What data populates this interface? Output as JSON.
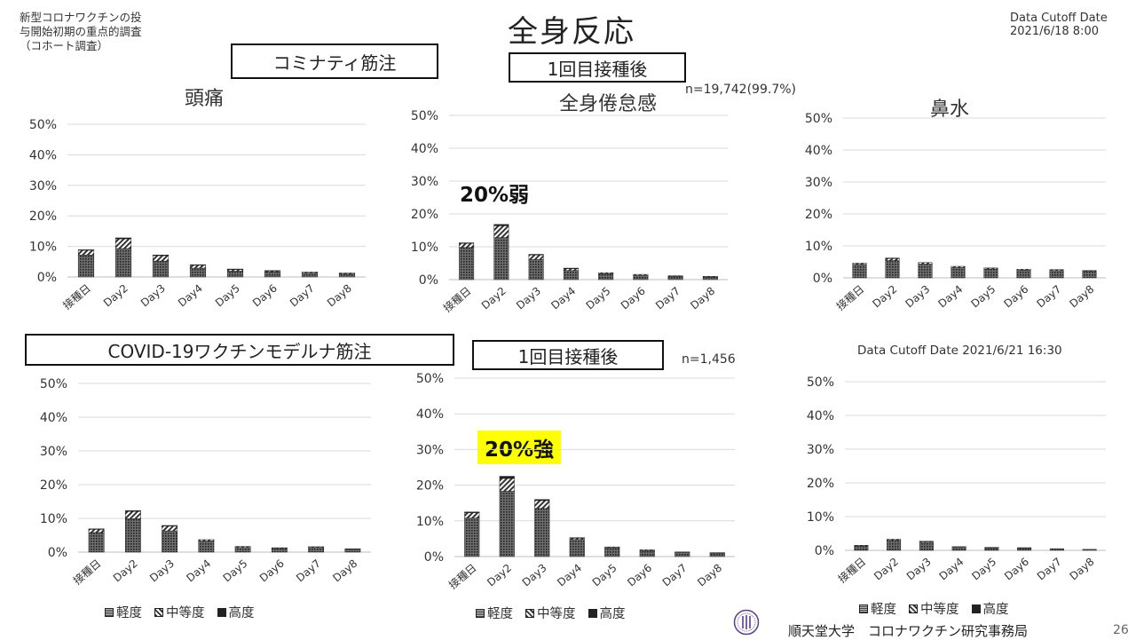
{
  "header": {
    "survey_title_lines": [
      "新型コロナワクチンの投",
      "与開始初期の重点的調査",
      "（コホート調査）"
    ],
    "main_title": "全身反応",
    "cutoff_lines": [
      "Data Cutoff Date",
      "2021/6/18 8:00"
    ]
  },
  "sections": [
    {
      "vaccine_label": "コミナティ筋注",
      "dose_label": "1回目接種後",
      "n_label": "n=19,742(99.7%)",
      "annotation": "20%弱"
    },
    {
      "vaccine_label": "COVID-19ワクチンモデルナ筋注",
      "dose_label": "1回目接種後",
      "n_label": "n=1,456",
      "cutoff_label": "Data Cutoff Date 2021/6/21 16:30",
      "annotation": "20%強"
    }
  ],
  "legend": {
    "items": [
      {
        "label": "軽度",
        "pattern": "dots"
      },
      {
        "label": "中等度",
        "pattern": "hatch"
      },
      {
        "label": "高度",
        "pattern": "solid"
      }
    ]
  },
  "footer": {
    "institution": "順天堂大学　コロナワクチン研究事務局",
    "page_number": "26"
  },
  "colors": {
    "bar_fill": "#3c3c3c",
    "grid": "#d9d9d9",
    "highlight": "#ffff00"
  },
  "chart_data": [
    {
      "type": "bar",
      "stacked": true,
      "title": "頭痛",
      "categories": [
        "接種日",
        "Day2",
        "Day3",
        "Day4",
        "Day5",
        "Day6",
        "Day7",
        "Day8"
      ],
      "yticks": [
        "0%",
        "10%",
        "20%",
        "30%",
        "40%",
        "50%"
      ],
      "ylim": [
        0,
        50
      ],
      "grid": true,
      "series": [
        {
          "name": "軽度",
          "values": [
            7.2,
            9.3,
            5.2,
            2.9,
            1.9,
            1.6,
            1.3,
            1.0
          ]
        },
        {
          "name": "中等度",
          "values": [
            1.6,
            3.2,
            1.8,
            1.0,
            0.6,
            0.4,
            0.3,
            0.3
          ]
        },
        {
          "name": "高度",
          "values": [
            0.1,
            0.3,
            0.2,
            0.1,
            0.1,
            0.1,
            0.0,
            0.0
          ]
        }
      ]
    },
    {
      "type": "bar",
      "stacked": true,
      "title": "全身倦怠感",
      "categories": [
        "接種日",
        "Day2",
        "Day3",
        "Day4",
        "Day5",
        "Day6",
        "Day7",
        "Day8"
      ],
      "yticks": [
        "0%",
        "10%",
        "20%",
        "30%",
        "40%",
        "50%"
      ],
      "ylim": [
        0,
        50
      ],
      "grid": true,
      "series": [
        {
          "name": "軽度",
          "values": [
            9.8,
            12.8,
            6.1,
            2.8,
            1.8,
            1.3,
            1.0,
            0.8
          ]
        },
        {
          "name": "中等度",
          "values": [
            1.3,
            3.6,
            1.4,
            0.6,
            0.3,
            0.3,
            0.2,
            0.2
          ]
        },
        {
          "name": "高度",
          "values": [
            0.1,
            0.4,
            0.2,
            0.1,
            0.0,
            0.0,
            0.0,
            0.0
          ]
        }
      ]
    },
    {
      "type": "bar",
      "stacked": true,
      "title": "鼻水",
      "categories": [
        "接種日",
        "Day2",
        "Day3",
        "Day4",
        "Day5",
        "Day6",
        "Day7",
        "Day8"
      ],
      "yticks": [
        "0%",
        "10%",
        "20%",
        "30%",
        "40%",
        "50%"
      ],
      "ylim": [
        0,
        50
      ],
      "grid": true,
      "series": [
        {
          "name": "軽度",
          "values": [
            4.2,
            5.4,
            4.3,
            3.2,
            2.8,
            2.4,
            2.3,
            2.1
          ]
        },
        {
          "name": "中等度",
          "values": [
            0.4,
            0.7,
            0.5,
            0.4,
            0.3,
            0.3,
            0.3,
            0.2
          ]
        },
        {
          "name": "高度",
          "values": [
            0.0,
            0.1,
            0.0,
            0.0,
            0.0,
            0.0,
            0.0,
            0.0
          ]
        }
      ]
    },
    {
      "type": "bar",
      "stacked": true,
      "title": "",
      "categories": [
        "接種日",
        "Day2",
        "Day3",
        "Day4",
        "Day5",
        "Day6",
        "Day7",
        "Day8"
      ],
      "yticks": [
        "0%",
        "10%",
        "20%",
        "30%",
        "40%",
        "50%"
      ],
      "ylim": [
        0,
        50
      ],
      "grid": true,
      "series": [
        {
          "name": "軽度",
          "values": [
            5.8,
            9.9,
            6.3,
            3.3,
            1.4,
            1.1,
            1.4,
            0.9
          ]
        },
        {
          "name": "中等度",
          "values": [
            1.0,
            2.2,
            1.5,
            0.4,
            0.3,
            0.2,
            0.2,
            0.1
          ]
        },
        {
          "name": "高度",
          "values": [
            0.1,
            0.2,
            0.1,
            0.0,
            0.0,
            0.0,
            0.0,
            0.0
          ]
        }
      ]
    },
    {
      "type": "bar",
      "stacked": true,
      "title": "",
      "categories": [
        "接種日",
        "Day2",
        "Day3",
        "Day4",
        "Day5",
        "Day6",
        "Day7",
        "Day8"
      ],
      "yticks": [
        "0%",
        "10%",
        "20%",
        "30%",
        "40%",
        "50%"
      ],
      "ylim": [
        0,
        50
      ],
      "grid": true,
      "series": [
        {
          "name": "軽度",
          "values": [
            10.8,
            18.3,
            13.5,
            4.8,
            2.5,
            1.7,
            1.2,
            1.0
          ]
        },
        {
          "name": "中等度",
          "values": [
            1.5,
            3.6,
            2.2,
            0.4,
            0.2,
            0.2,
            0.1,
            0.1
          ]
        },
        {
          "name": "高度",
          "values": [
            0.2,
            0.6,
            0.3,
            0.1,
            0.0,
            0.0,
            0.0,
            0.0
          ]
        }
      ]
    },
    {
      "type": "bar",
      "stacked": true,
      "title": "",
      "categories": [
        "接種日",
        "Day2",
        "Day3",
        "Day4",
        "Day5",
        "Day6",
        "Day7",
        "Day8"
      ],
      "yticks": [
        "0%",
        "10%",
        "20%",
        "30%",
        "40%",
        "50%"
      ],
      "ylim": [
        0,
        50
      ],
      "grid": true,
      "series": [
        {
          "name": "軽度",
          "values": [
            1.3,
            3.0,
            2.5,
            1.0,
            0.8,
            0.7,
            0.5,
            0.3
          ]
        },
        {
          "name": "中等度",
          "values": [
            0.2,
            0.3,
            0.2,
            0.1,
            0.1,
            0.1,
            0.0,
            0.0
          ]
        },
        {
          "name": "高度",
          "values": [
            0.0,
            0.0,
            0.0,
            0.0,
            0.0,
            0.0,
            0.0,
            0.0
          ]
        }
      ]
    }
  ]
}
